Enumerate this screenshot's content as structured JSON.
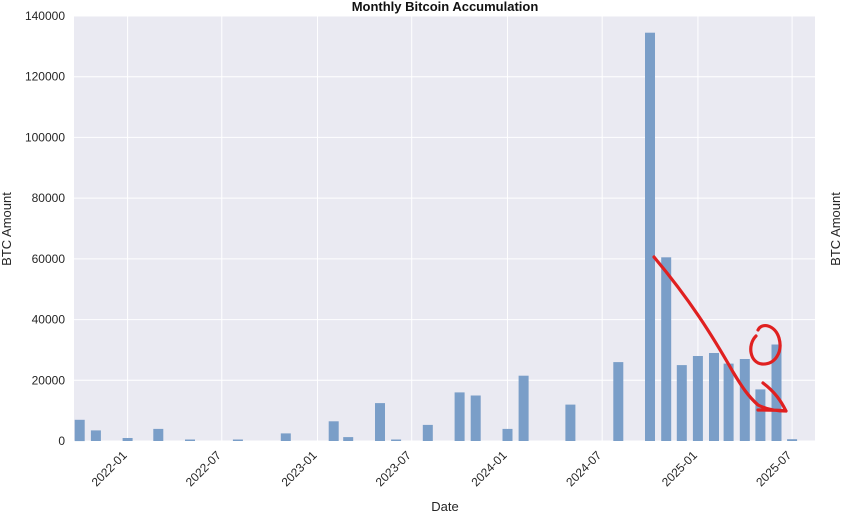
{
  "chart_data": {
    "type": "bar",
    "title": "Monthly Bitcoin Accumulation",
    "xlabel": "Date",
    "ylabel": "BTC Amount",
    "ylabel_right": "BTC Amount",
    "ylim": [
      0,
      140000
    ],
    "yticks": [
      0,
      20000,
      40000,
      60000,
      80000,
      100000,
      120000,
      140000
    ],
    "xrange": [
      "2021-09-20",
      "2025-08-14"
    ],
    "xticks": [
      "2022-01",
      "2022-07",
      "2023-01",
      "2023-07",
      "2024-01",
      "2024-07",
      "2025-01",
      "2025-07"
    ],
    "grid": true,
    "bar_color": "#7a9ec8",
    "background_color": "#eaeaf2",
    "x": [
      "2021-10",
      "2021-11",
      "2021-12",
      "2022-01",
      "2022-02",
      "2022-03",
      "2022-04",
      "2022-05",
      "2022-06",
      "2022-07",
      "2022-08",
      "2022-09",
      "2022-10",
      "2022-11",
      "2022-12",
      "2023-01",
      "2023-02",
      "2023-03",
      "2023-04",
      "2023-05",
      "2023-06",
      "2023-07",
      "2023-08",
      "2023-09",
      "2023-10",
      "2023-11",
      "2023-12",
      "2024-01",
      "2024-02",
      "2024-03",
      "2024-04",
      "2024-05",
      "2024-06",
      "2024-07",
      "2024-08",
      "2024-09",
      "2024-10",
      "2024-11",
      "2024-12",
      "2025-01",
      "2025-02",
      "2025-03",
      "2025-04",
      "2025-05",
      "2025-06",
      "2025-07"
    ],
    "values": [
      7000,
      3500,
      0,
      1000,
      0,
      4000,
      0,
      500,
      0,
      0,
      500,
      0,
      0,
      2500,
      0,
      0,
      6500,
      1300,
      0,
      12500,
      500,
      0,
      5300,
      0,
      16000,
      15000,
      0,
      4000,
      21500,
      0,
      0,
      12000,
      0,
      0,
      26000,
      0,
      134500,
      60500,
      25000,
      28000,
      29000,
      25500,
      27000,
      17000,
      31800,
      600
    ]
  },
  "annotations": {
    "stroke_color": "#e02020"
  }
}
